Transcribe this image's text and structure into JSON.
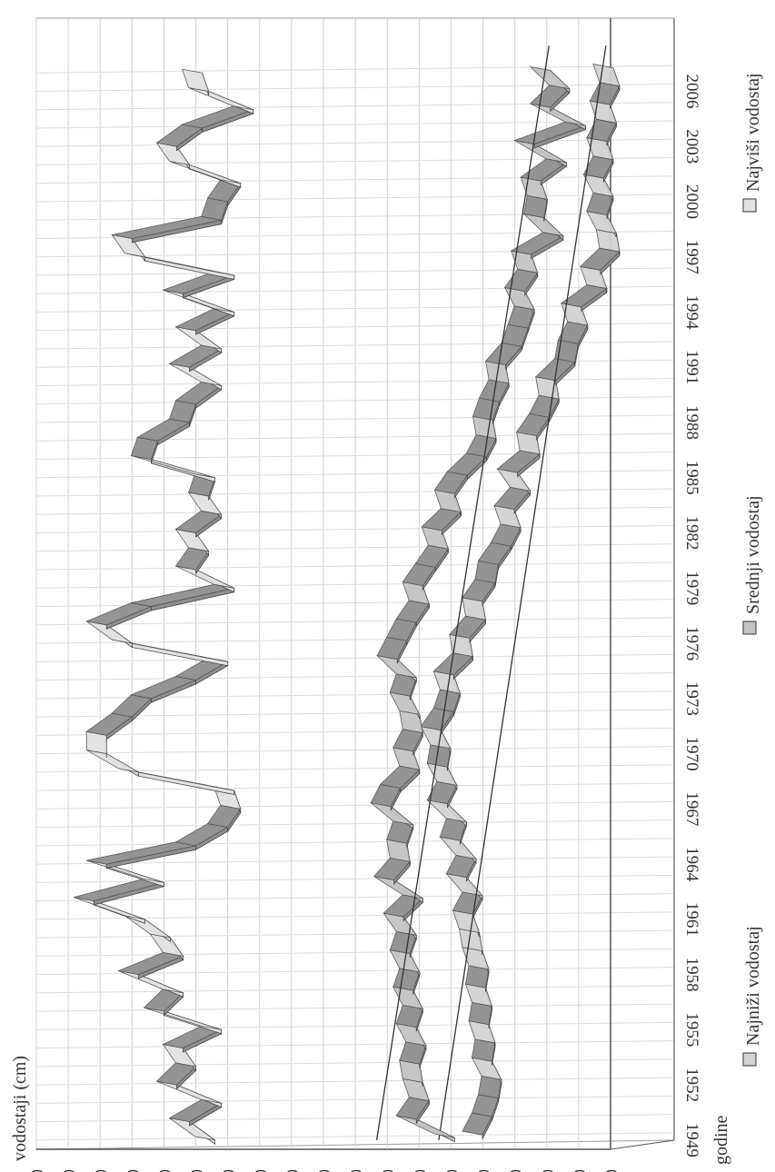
{
  "chart_data": {
    "type": "line",
    "view": "3d-ribbon",
    "ylabel": "vodostaji (cm)",
    "xlabel": "godine",
    "ylim": [
      -350,
      550
    ],
    "ytick_step": 50,
    "xtick_labels": [
      "1949",
      "1952",
      "1955",
      "1958",
      "1961",
      "1964",
      "1967",
      "1970",
      "1973",
      "1976",
      "1979",
      "1982",
      "1985",
      "1988",
      "1991",
      "1994",
      "1997",
      "2000",
      "2003",
      "2006"
    ],
    "grid": true,
    "legend_position": "bottom",
    "series": [
      {
        "name": "Najniži vodostaj",
        "color": "#d2d2d2",
        "x": [
          1949,
          1950,
          1951,
          1952,
          1953,
          1954,
          1955,
          1956,
          1957,
          1958,
          1959,
          1960,
          1961,
          1962,
          1963,
          1964,
          1965,
          1966,
          1967,
          1968,
          1969,
          1970,
          1971,
          1972,
          1973,
          1974,
          1975,
          1976,
          1977,
          1978,
          1979,
          1980,
          1981,
          1982,
          1983,
          1984,
          1985,
          1986,
          1987,
          1988,
          1989,
          1990,
          1991,
          1992,
          1993,
          1994,
          1995,
          1996,
          1997,
          1998,
          1999,
          2000,
          2001,
          2002,
          2003,
          2004,
          2005,
          2006,
          2007
        ],
        "values": [
          -95,
          -110,
          -120,
          -125,
          -110,
          -115,
          -105,
          -110,
          -100,
          -105,
          -95,
          -90,
          -80,
          -95,
          -70,
          -85,
          -60,
          -70,
          -40,
          -55,
          -40,
          -45,
          -30,
          -50,
          -60,
          -50,
          -80,
          -75,
          -100,
          -95,
          -115,
          -120,
          -140,
          -155,
          -145,
          -170,
          -150,
          -185,
          -180,
          -200,
          -215,
          -210,
          -240,
          -245,
          -260,
          -250,
          -290,
          -280,
          -310,
          -305,
          -290,
          -300,
          -285,
          -300,
          -290,
          -305,
          -295,
          -310,
          -300
        ]
      },
      {
        "name": "Srednji vodostaj",
        "color": "#c4c4c4",
        "x": [
          1949,
          1950,
          1951,
          1952,
          1953,
          1954,
          1955,
          1956,
          1957,
          1958,
          1959,
          1960,
          1961,
          1962,
          1963,
          1964,
          1965,
          1966,
          1967,
          1968,
          1969,
          1970,
          1971,
          1972,
          1973,
          1974,
          1975,
          1976,
          1977,
          1978,
          1979,
          1980,
          1981,
          1982,
          1983,
          1984,
          1985,
          1986,
          1987,
          1988,
          1989,
          1990,
          1991,
          1992,
          1993,
          1994,
          1995,
          1996,
          1997,
          1998,
          1999,
          2000,
          2001,
          2002,
          2003,
          2004,
          2005,
          2006,
          2007
        ],
        "values": [
          -80,
          -20,
          -40,
          -30,
          -25,
          -35,
          -20,
          -30,
          -15,
          -25,
          -10,
          -20,
          0,
          -30,
          15,
          -10,
          -5,
          -15,
          20,
          5,
          -25,
          -15,
          -30,
          -25,
          -10,
          -20,
          10,
          -5,
          -20,
          -40,
          -30,
          -50,
          -70,
          -60,
          -90,
          -80,
          -100,
          -130,
          -145,
          -140,
          -150,
          -165,
          -160,
          -185,
          -195,
          -205,
          -190,
          -210,
          -200,
          -250,
          -220,
          -225,
          -215,
          -255,
          -205,
          -285,
          -230,
          -260,
          -230
        ]
      },
      {
        "name": "Najviši vodostaj",
        "color": "#e2e2e2",
        "x": [
          1949,
          1950,
          1951,
          1952,
          1953,
          1954,
          1955,
          1956,
          1957,
          1958,
          1959,
          1960,
          1961,
          1962,
          1963,
          1964,
          1965,
          1966,
          1967,
          1968,
          1969,
          1970,
          1971,
          1972,
          1973,
          1974,
          1975,
          1976,
          1977,
          1978,
          1979,
          1980,
          1981,
          1982,
          1983,
          1984,
          1985,
          1986,
          1987,
          1988,
          1989,
          1990,
          1991,
          1992,
          1993,
          1994,
          1995,
          1996,
          1997,
          1998,
          1999,
          2000,
          2001,
          2002,
          2003,
          2004,
          2005,
          2006,
          2007
        ],
        "values": [
          270,
          310,
          260,
          330,
          300,
          320,
          260,
          350,
          320,
          390,
          320,
          340,
          380,
          460,
          350,
          440,
          300,
          250,
          230,
          240,
          390,
          440,
          440,
          400,
          370,
          300,
          250,
          400,
          440,
          370,
          240,
          300,
          280,
          300,
          260,
          280,
          270,
          370,
          360,
          310,
          300,
          260,
          310,
          260,
          300,
          240,
          320,
          240,
          380,
          400,
          260,
          250,
          230,
          310,
          330,
          290,
          210,
          280,
          290
        ]
      }
    ]
  }
}
